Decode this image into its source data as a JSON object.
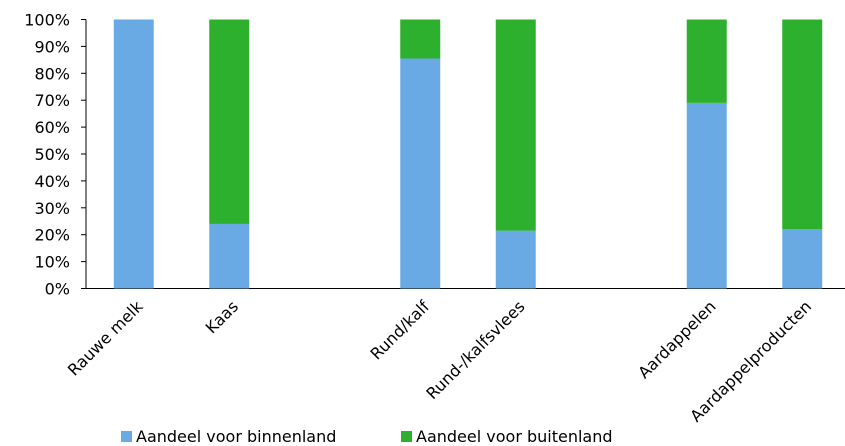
{
  "chart_data": {
    "type": "bar",
    "stacked": true,
    "percent": true,
    "categories": [
      "Rauwe melk",
      "Kaas",
      "",
      "Rund/kalf",
      "Rund-/kalfsvlees",
      "",
      "Aardappelen",
      "Aardappelproducten"
    ],
    "series": [
      {
        "name": "Aandeel voor binnenland",
        "color": "#6aaae4",
        "values": [
          100,
          24,
          0,
          85.5,
          21.5,
          0,
          69,
          22
        ]
      },
      {
        "name": "Aandeel voor buitenland",
        "color": "#2db02d",
        "values": [
          0,
          76,
          0,
          14.5,
          78.5,
          0,
          31,
          78
        ]
      }
    ],
    "yticks": [
      "0%",
      "10%",
      "20%",
      "30%",
      "40%",
      "50%",
      "60%",
      "70%",
      "80%",
      "90%",
      "100%"
    ],
    "ylim": [
      0,
      100
    ],
    "grid": false,
    "legend": "bottom"
  }
}
